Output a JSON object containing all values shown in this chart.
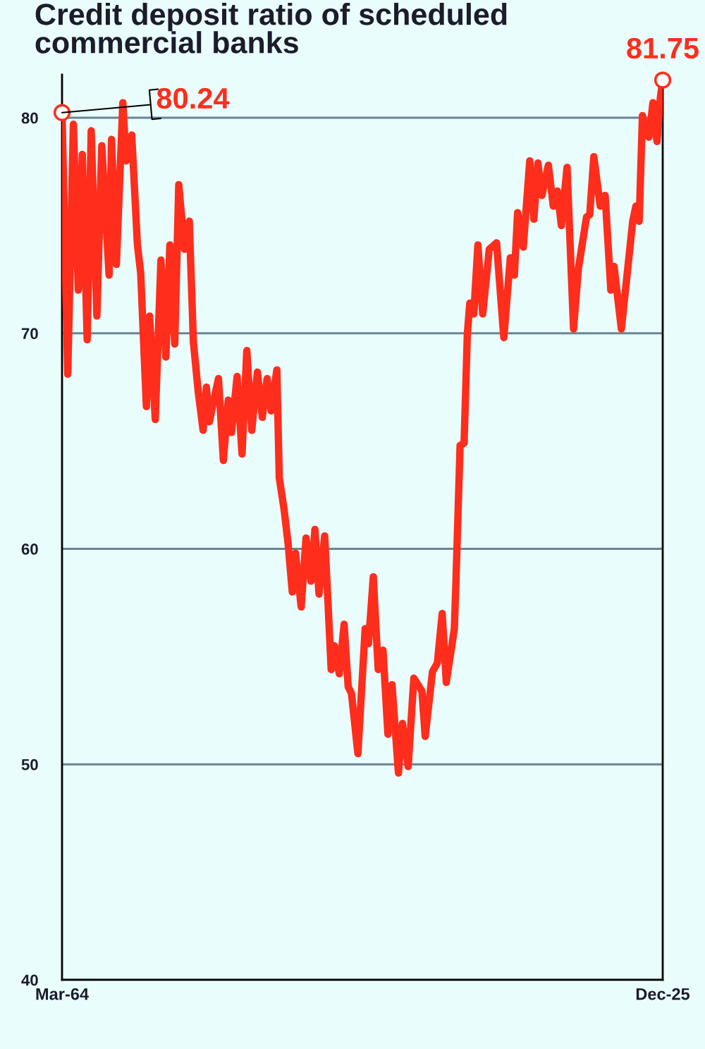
{
  "chart_data": {
    "type": "line",
    "title": "Credit deposit ratio of scheduled commercial banks",
    "x": [
      "1964-03",
      "1964-10",
      "1965-05",
      "1965-11",
      "1966-04",
      "1966-10",
      "1967-03",
      "1967-10",
      "1968-04",
      "1969-01",
      "1969-04",
      "1969-10",
      "1970-06",
      "1970-10",
      "1971-05",
      "1971-12",
      "1972-04",
      "1972-11",
      "1973-03",
      "1973-10",
      "1974-05",
      "1974-11",
      "1975-04",
      "1975-10",
      "1976-03",
      "1976-10",
      "1977-04",
      "1977-09",
      "1978-03",
      "1978-09",
      "1979-01",
      "1979-05",
      "1979-09",
      "1980-04",
      "1980-10",
      "1981-04",
      "1981-08",
      "1982-03",
      "1982-09",
      "1983-03",
      "1983-09",
      "1984-04",
      "1984-10",
      "1985-04",
      "1985-09",
      "1986-04",
      "1986-07",
      "1987-01",
      "1987-06",
      "1987-11",
      "1988-03",
      "1988-10",
      "1989-04",
      "1989-10",
      "1990-03",
      "1990-08",
      "1991-03",
      "1991-07",
      "1991-11",
      "1992-03",
      "1992-09",
      "1993-03",
      "1993-08",
      "1993-12",
      "1994-08",
      "1995-05",
      "1995-09",
      "1996-03",
      "1996-09",
      "1997-03",
      "1997-09",
      "1998-02",
      "1998-10",
      "1999-03",
      "1999-10",
      "2000-05",
      "2001-03",
      "2001-07",
      "2002-04",
      "2002-10",
      "2003-04",
      "2003-09",
      "2004-07",
      "2004-09",
      "2005-02",
      "2005-07",
      "2005-11",
      "2006-02",
      "2006-07",
      "2006-12",
      "2007-06",
      "2008-02",
      "2008-11",
      "2009-08",
      "2010-04",
      "2010-09",
      "2011-01",
      "2011-08",
      "2012-04",
      "2012-09",
      "2013-02",
      "2013-07",
      "2014-03",
      "2014-09",
      "2015-02",
      "2015-07",
      "2016-02",
      "2016-10",
      "2017-04",
      "2018-02",
      "2018-06",
      "2018-11",
      "2019-07",
      "2020-01",
      "2020-08",
      "2020-12",
      "2021-09",
      "2022-11",
      "2023-03",
      "2023-07",
      "2023-11",
      "2024-07",
      "2024-12",
      "2025-05",
      "2025-09",
      "2025-12"
    ],
    "values": [
      80.24,
      68.1,
      79.7,
      72.0,
      78.3,
      69.7,
      79.4,
      70.8,
      78.7,
      72.7,
      79.0,
      73.2,
      80.7,
      78.0,
      79.2,
      74.1,
      72.8,
      66.6,
      70.8,
      66.0,
      73.4,
      68.9,
      74.1,
      69.5,
      76.9,
      73.9,
      75.2,
      69.6,
      67.3,
      65.5,
      67.5,
      65.9,
      66.7,
      67.9,
      64.1,
      66.9,
      65.4,
      68.0,
      64.4,
      69.2,
      65.5,
      68.2,
      66.1,
      67.9,
      66.4,
      68.3,
      63.3,
      61.8,
      60.2,
      58.0,
      59.8,
      57.3,
      60.5,
      58.5,
      60.9,
      57.9,
      60.6,
      57.6,
      54.4,
      55.5,
      54.2,
      56.5,
      53.6,
      53.3,
      50.5,
      56.3,
      55.6,
      58.7,
      54.4,
      55.3,
      51.4,
      53.7,
      49.6,
      51.9,
      49.9,
      54.0,
      53.4,
      51.3,
      54.3,
      54.7,
      57.0,
      53.8,
      56.3,
      58.6,
      64.8,
      64.9,
      70.0,
      71.4,
      70.9,
      74.1,
      70.9,
      73.9,
      74.2,
      69.8,
      73.5,
      72.7,
      75.6,
      74.0,
      78.0,
      75.3,
      77.9,
      76.4,
      77.8,
      75.9,
      76.6,
      75.0,
      77.7,
      70.2,
      73.0,
      75.4,
      75.5,
      78.2,
      75.9,
      76.4,
      72.0,
      73.1,
      70.2,
      75.2,
      75.9,
      75.2,
      80.1,
      79.1,
      80.7,
      78.9,
      80.9,
      81.75
    ],
    "color": "#fe2d1c",
    "xlim": [
      "1964-03",
      "2025-12"
    ],
    "xticks": [
      {
        "value": "1964-03",
        "label": "Mar-64"
      },
      {
        "value": "2025-12",
        "label": "Dec-25"
      }
    ],
    "ylim": [
      40,
      82
    ],
    "yticks": [
      40,
      50,
      60,
      70,
      80
    ],
    "grid": "y",
    "annotations": [
      {
        "text": "80.24",
        "x": "1964-03",
        "y": 80.24
      },
      {
        "text": "81.75",
        "x": "2025-12",
        "y": 81.75
      }
    ]
  }
}
